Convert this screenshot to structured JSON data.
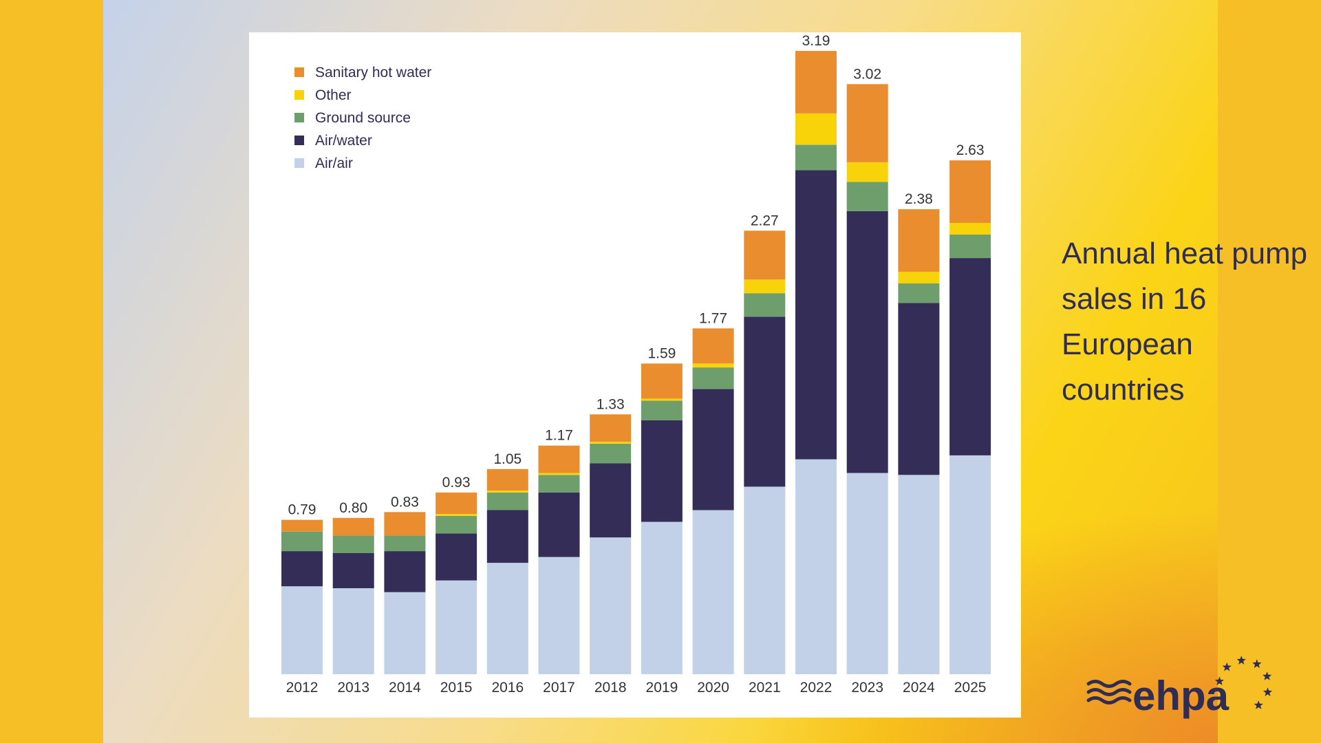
{
  "headline": "Annual heat pump sales in 16 European countries",
  "logo": {
    "text": "ehpa"
  },
  "colors": {
    "sanitary_hot_water": "#e98d2f",
    "other": "#f9d30a",
    "ground_source": "#6f9e6d",
    "air_water": "#332d57",
    "air_air": "#c2d0e8",
    "text": "#2f2c55",
    "total_label": "#333333"
  },
  "chart_data": {
    "type": "bar",
    "stacked": true,
    "categories": [
      "2012",
      "2013",
      "2014",
      "2015",
      "2016",
      "2017",
      "2018",
      "2019",
      "2020",
      "2021",
      "2022",
      "2023",
      "2024",
      "2025"
    ],
    "totals": [
      0.79,
      0.8,
      0.83,
      0.93,
      1.05,
      1.17,
      1.33,
      1.59,
      1.77,
      2.27,
      3.19,
      3.02,
      2.38,
      2.63
    ],
    "total_labels": [
      "0.79",
      "0.80",
      "0.83",
      "0.93",
      "1.05",
      "1.17",
      "1.33",
      "1.59",
      "1.77",
      "2.27",
      "3.19",
      "3.02",
      "2.38",
      "2.63"
    ],
    "series": [
      {
        "name": "Air/air",
        "key": "air_air",
        "values": [
          0.45,
          0.44,
          0.42,
          0.48,
          0.57,
          0.6,
          0.7,
          0.78,
          0.84,
          0.96,
          1.1,
          1.03,
          1.02,
          1.12
        ]
      },
      {
        "name": "Air/water",
        "key": "air_water",
        "values": [
          0.18,
          0.18,
          0.21,
          0.24,
          0.27,
          0.33,
          0.38,
          0.52,
          0.62,
          0.87,
          1.48,
          1.34,
          0.88,
          1.01
        ]
      },
      {
        "name": "Ground source",
        "key": "ground_source",
        "values": [
          0.1,
          0.09,
          0.08,
          0.09,
          0.09,
          0.09,
          0.1,
          0.1,
          0.11,
          0.12,
          0.13,
          0.15,
          0.1,
          0.12
        ]
      },
      {
        "name": "Other",
        "key": "other",
        "values": [
          0.0,
          0.0,
          0.0,
          0.01,
          0.01,
          0.01,
          0.01,
          0.01,
          0.02,
          0.07,
          0.16,
          0.1,
          0.06,
          0.06
        ]
      },
      {
        "name": "Sanitary hot water",
        "key": "sanitary_hot_water",
        "values": [
          0.06,
          0.09,
          0.12,
          0.11,
          0.11,
          0.14,
          0.14,
          0.18,
          0.18,
          0.25,
          0.32,
          0.4,
          0.32,
          0.32
        ]
      }
    ],
    "legend": [
      "Sanitary hot water",
      "Other",
      "Ground source",
      "Air/water",
      "Air/air"
    ],
    "legend_position": "top-left",
    "ylim": [
      0,
      3.3
    ],
    "grid": false,
    "title": "",
    "xlabel": "",
    "ylabel": ""
  }
}
